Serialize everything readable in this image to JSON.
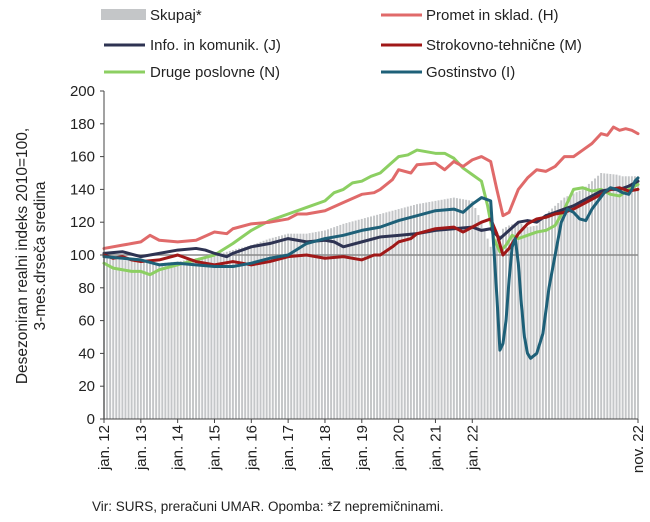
{
  "chart_data": {
    "type": "line",
    "ylabel_line1": "Desezoniran realni indeks 2010=100,",
    "ylabel_line2": "3-mes.drseča sredina",
    "source": "Vir: SURS, preračuni UMAR. Opomba: *Z nepremičninami.",
    "ylim": [
      0,
      200
    ],
    "yticks": [
      "0",
      "20",
      "40",
      "60",
      "80",
      "100",
      "120",
      "140",
      "160",
      "180",
      "200"
    ],
    "xticks": [
      "jan. 12",
      "jan. 13",
      "jan. 14",
      "jan. 15",
      "jan. 16",
      "jan. 17",
      "jan. 18",
      "jan. 19",
      "jan. 20",
      "jan. 21",
      "jan. 22",
      "nov. 22"
    ],
    "x_start": "jan. 12",
    "x_end": "nov. 22",
    "grid": false,
    "reference_line": 100,
    "legend_placement": "top",
    "colors": {
      "skupaj": "#c4c6c8",
      "promet": "#e06a6a",
      "info": "#2e3352",
      "strokovno": "#a01818",
      "druge": "#8ccf62",
      "gostinstvo": "#1e6078"
    },
    "series": [
      {
        "key": "skupaj",
        "name": "Skupaj*",
        "kind": "bar",
        "points": [
          [
            0,
            98
          ],
          [
            6,
            97
          ],
          [
            12,
            96
          ],
          [
            18,
            95
          ],
          [
            24,
            96
          ],
          [
            30,
            98
          ],
          [
            36,
            100
          ],
          [
            42,
            103
          ],
          [
            48,
            106
          ],
          [
            54,
            110
          ],
          [
            60,
            113
          ],
          [
            66,
            113
          ],
          [
            72,
            115
          ],
          [
            78,
            119
          ],
          [
            84,
            122
          ],
          [
            90,
            125
          ],
          [
            96,
            128
          ],
          [
            102,
            131
          ],
          [
            108,
            133
          ],
          [
            114,
            135
          ],
          [
            120,
            133
          ],
          [
            123,
            120
          ],
          [
            126,
            105
          ],
          [
            129,
            112
          ],
          [
            132,
            118
          ],
          [
            135,
            120
          ],
          [
            138,
            117
          ],
          [
            141,
            118
          ],
          [
            144,
            125
          ],
          [
            150,
            135
          ],
          [
            156,
            140
          ],
          [
            162,
            150
          ],
          [
            167,
            149
          ],
          [
            169,
            148
          ],
          [
            130,
            116
          ]
        ]
      },
      {
        "key": "promet",
        "name": "Promet in sklad. (H)",
        "kind": "line",
        "points": [
          [
            0,
            104
          ],
          [
            6,
            106
          ],
          [
            9,
            107
          ],
          [
            12,
            108
          ],
          [
            15,
            112
          ],
          [
            18,
            109
          ],
          [
            24,
            108
          ],
          [
            30,
            109
          ],
          [
            36,
            114
          ],
          [
            40,
            113
          ],
          [
            42,
            116
          ],
          [
            48,
            119
          ],
          [
            54,
            120
          ],
          [
            60,
            122
          ],
          [
            63,
            125
          ],
          [
            66,
            125
          ],
          [
            72,
            127
          ],
          [
            78,
            132
          ],
          [
            84,
            137
          ],
          [
            88,
            138
          ],
          [
            90,
            140
          ],
          [
            94,
            146
          ],
          [
            96,
            152
          ],
          [
            100,
            150
          ],
          [
            102,
            155
          ],
          [
            108,
            156
          ],
          [
            111,
            152
          ],
          [
            114,
            157
          ],
          [
            117,
            154
          ],
          [
            120,
            158
          ],
          [
            123,
            160
          ],
          [
            126,
            157
          ],
          [
            128,
            140
          ],
          [
            130,
            124
          ],
          [
            132,
            126
          ],
          [
            135,
            140
          ],
          [
            138,
            147
          ],
          [
            141,
            152
          ],
          [
            144,
            151
          ],
          [
            147,
            154
          ],
          [
            150,
            160
          ],
          [
            153,
            160
          ],
          [
            156,
            164
          ],
          [
            159,
            168
          ],
          [
            162,
            174
          ],
          [
            164,
            173
          ],
          [
            166,
            178
          ],
          [
            168,
            176
          ],
          [
            170,
            177
          ],
          [
            172,
            176
          ],
          [
            174,
            174
          ]
        ]
      },
      {
        "key": "info",
        "name": "Info. in komunik. (J)",
        "kind": "line",
        "points": [
          [
            0,
            101
          ],
          [
            6,
            102
          ],
          [
            12,
            99
          ],
          [
            18,
            101
          ],
          [
            24,
            103
          ],
          [
            30,
            104
          ],
          [
            33,
            103
          ],
          [
            36,
            101
          ],
          [
            40,
            99
          ],
          [
            42,
            101
          ],
          [
            48,
            105
          ],
          [
            54,
            107
          ],
          [
            60,
            110
          ],
          [
            66,
            108
          ],
          [
            72,
            109
          ],
          [
            75,
            108
          ],
          [
            78,
            105
          ],
          [
            84,
            108
          ],
          [
            90,
            111
          ],
          [
            96,
            112
          ],
          [
            102,
            113
          ],
          [
            108,
            115
          ],
          [
            114,
            116
          ],
          [
            120,
            117
          ],
          [
            123,
            115
          ],
          [
            126,
            116
          ],
          [
            129,
            110
          ],
          [
            132,
            115
          ],
          [
            135,
            120
          ],
          [
            138,
            121
          ],
          [
            141,
            120
          ],
          [
            144,
            124
          ],
          [
            147,
            126
          ],
          [
            150,
            128
          ],
          [
            153,
            130
          ],
          [
            156,
            133
          ],
          [
            159,
            136
          ],
          [
            162,
            139
          ],
          [
            165,
            140
          ],
          [
            168,
            140
          ],
          [
            171,
            142
          ],
          [
            174,
            145
          ]
        ]
      },
      {
        "key": "strokovno",
        "name": "Strokovno-tehnične (M)",
        "kind": "line",
        "points": [
          [
            0,
            100
          ],
          [
            3,
            98
          ],
          [
            6,
            99
          ],
          [
            9,
            97
          ],
          [
            12,
            96
          ],
          [
            18,
            97
          ],
          [
            24,
            100
          ],
          [
            30,
            96
          ],
          [
            36,
            94
          ],
          [
            42,
            96
          ],
          [
            48,
            94
          ],
          [
            54,
            96
          ],
          [
            60,
            99
          ],
          [
            66,
            100
          ],
          [
            72,
            98
          ],
          [
            78,
            99
          ],
          [
            84,
            97
          ],
          [
            88,
            100
          ],
          [
            90,
            100
          ],
          [
            94,
            105
          ],
          [
            96,
            108
          ],
          [
            100,
            110
          ],
          [
            102,
            113
          ],
          [
            108,
            116
          ],
          [
            114,
            117
          ],
          [
            117,
            114
          ],
          [
            120,
            117
          ],
          [
            123,
            120
          ],
          [
            126,
            122
          ],
          [
            128,
            113
          ],
          [
            130,
            100
          ],
          [
            132,
            104
          ],
          [
            135,
            113
          ],
          [
            138,
            119
          ],
          [
            141,
            122
          ],
          [
            144,
            123
          ],
          [
            147,
            125
          ],
          [
            150,
            126
          ],
          [
            153,
            128
          ],
          [
            156,
            131
          ],
          [
            159,
            134
          ],
          [
            162,
            137
          ],
          [
            165,
            140
          ],
          [
            168,
            141
          ],
          [
            171,
            139
          ],
          [
            174,
            140
          ]
        ]
      },
      {
        "key": "druge",
        "name": "Druge poslovne (N)",
        "kind": "line",
        "points": [
          [
            0,
            95
          ],
          [
            3,
            92
          ],
          [
            6,
            91
          ],
          [
            9,
            90
          ],
          [
            12,
            90
          ],
          [
            15,
            88
          ],
          [
            18,
            91
          ],
          [
            24,
            94
          ],
          [
            30,
            97
          ],
          [
            36,
            100
          ],
          [
            42,
            107
          ],
          [
            48,
            115
          ],
          [
            54,
            121
          ],
          [
            60,
            125
          ],
          [
            66,
            129
          ],
          [
            72,
            133
          ],
          [
            75,
            138
          ],
          [
            78,
            140
          ],
          [
            81,
            144
          ],
          [
            84,
            145
          ],
          [
            87,
            148
          ],
          [
            90,
            150
          ],
          [
            93,
            155
          ],
          [
            96,
            160
          ],
          [
            99,
            161
          ],
          [
            102,
            164
          ],
          [
            105,
            163
          ],
          [
            108,
            162
          ],
          [
            111,
            162
          ],
          [
            114,
            159
          ],
          [
            117,
            153
          ],
          [
            120,
            149
          ],
          [
            123,
            145
          ],
          [
            125,
            130
          ],
          [
            127,
            110
          ],
          [
            129,
            102
          ],
          [
            131,
            106
          ],
          [
            133,
            112
          ],
          [
            135,
            110
          ],
          [
            138,
            112
          ],
          [
            141,
            114
          ],
          [
            144,
            115
          ],
          [
            147,
            118
          ],
          [
            150,
            128
          ],
          [
            153,
            140
          ],
          [
            156,
            141
          ],
          [
            159,
            139
          ],
          [
            162,
            140
          ],
          [
            165,
            137
          ],
          [
            168,
            136
          ],
          [
            171,
            140
          ],
          [
            174,
            143
          ]
        ]
      },
      {
        "key": "gostinstvo",
        "name": "Gostinstvo (I)",
        "kind": "line",
        "points": [
          [
            0,
            99
          ],
          [
            6,
            98
          ],
          [
            12,
            97
          ],
          [
            18,
            94
          ],
          [
            24,
            95
          ],
          [
            30,
            94
          ],
          [
            36,
            93
          ],
          [
            42,
            93
          ],
          [
            48,
            95
          ],
          [
            54,
            98
          ],
          [
            60,
            100
          ],
          [
            66,
            107
          ],
          [
            72,
            110
          ],
          [
            78,
            112
          ],
          [
            84,
            115
          ],
          [
            90,
            117
          ],
          [
            96,
            121
          ],
          [
            102,
            124
          ],
          [
            108,
            127
          ],
          [
            114,
            128
          ],
          [
            117,
            126
          ],
          [
            120,
            131
          ],
          [
            123,
            135
          ],
          [
            126,
            133
          ],
          [
            127,
            105
          ],
          [
            128,
            75
          ],
          [
            129,
            42
          ],
          [
            130,
            46
          ],
          [
            131,
            60
          ],
          [
            132,
            85
          ],
          [
            133,
            105
          ],
          [
            134,
            110
          ],
          [
            135,
            95
          ],
          [
            136,
            70
          ],
          [
            137,
            50
          ],
          [
            138,
            40
          ],
          [
            139,
            37
          ],
          [
            141,
            40
          ],
          [
            143,
            52
          ],
          [
            145,
            80
          ],
          [
            147,
            100
          ],
          [
            149,
            120
          ],
          [
            151,
            128
          ],
          [
            153,
            126
          ],
          [
            155,
            122
          ],
          [
            157,
            121
          ],
          [
            159,
            128
          ],
          [
            161,
            133
          ],
          [
            163,
            138
          ],
          [
            165,
            141
          ],
          [
            167,
            140
          ],
          [
            169,
            138
          ],
          [
            171,
            137
          ],
          [
            172,
            140
          ],
          [
            173,
            145
          ],
          [
            174,
            147
          ]
        ]
      }
    ]
  }
}
